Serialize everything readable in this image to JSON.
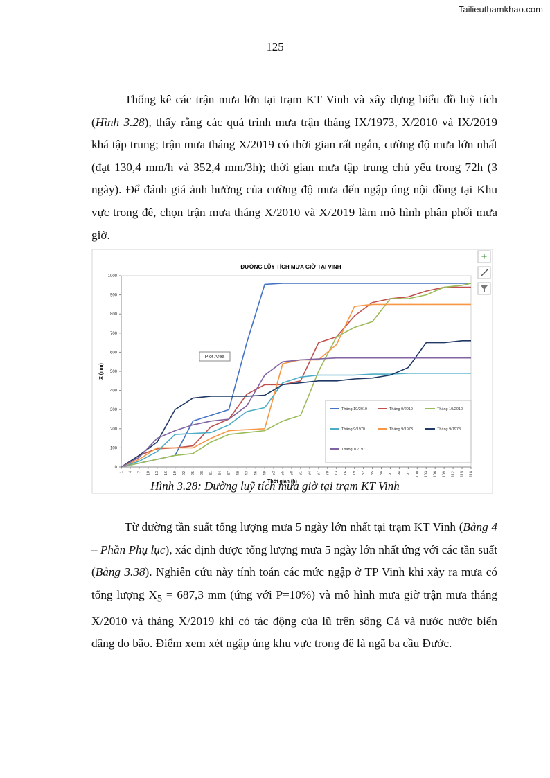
{
  "header": {
    "site": "Tailieuthamkhao.com",
    "page_number": "125"
  },
  "paragraphs": [
    [
      "Thống kê các trận mưa lớn tại trạm KT Vinh và xây dựng biểu đồ luỹ tích (",
      "Hình 3.28",
      "), thấy rằng các quá trình mưa trận tháng IX/1973, X/2010 và IX/2019 khá tập trung; trận mưa tháng X/2019 có thời gian rất ngắn, cường độ mưa lớn nhất (đạt 130,4 mm/h và 352,4 mm/3h); thời gian mưa tập trung chủ yếu trong 72h (3 ngày). Để đánh giá ảnh hưởng của cường độ mưa đến ngập úng nội đồng tại Khu vực trong đê, chọn trận mưa tháng X/2010 và X/2019 làm mô hình phân phối mưa giờ."
    ],
    [
      "Từ đường tần suất tổng lượng mưa 5 ngày lớn nhất tại trạm KT Vinh (",
      "Bảng 4 – Phần Phụ lục",
      "), xác định được tổng lượng mưa 5 ngày lớn nhất ứng với các tần suất (",
      "Bảng 3.38",
      "). Nghiên cứu này tính toán các mức ngập ở TP Vinh khi xảy ra mưa có tổng lượng X",
      "5",
      " = 687,3 mm (ứng với P=10%) và mô hình mưa giờ trận mưa tháng X/2010 và tháng X/2019 khi có tác động của lũ trên sông Cả và nước nước biển dâng do bão. Điểm xem xét ngập úng khu vực trong đê là ngã ba cầu Đước."
    ]
  ],
  "caption": "Hình 3.28: Đường luỹ tích mưa giờ tại trạm KT Vinh",
  "chart_data": {
    "type": "line",
    "title": "ĐƯỜNG LŨY TÍCH MƯA GIỜ TẠI VINH",
    "x_label": "Thời gian (h)",
    "y_label": "X (mm)",
    "tooltip": "Plot Area",
    "x": [
      1,
      7,
      13,
      19,
      25,
      31,
      37,
      43,
      49,
      55,
      61,
      67,
      73,
      79,
      85,
      91,
      97,
      103,
      109,
      115,
      118
    ],
    "xlim": [
      1,
      118
    ],
    "xticks": [
      1,
      4,
      7,
      10,
      13,
      16,
      19,
      22,
      25,
      28,
      31,
      34,
      37,
      40,
      43,
      46,
      49,
      52,
      55,
      58,
      61,
      64,
      67,
      70,
      73,
      76,
      79,
      82,
      85,
      88,
      91,
      94,
      97,
      100,
      103,
      106,
      109,
      112,
      115,
      118
    ],
    "ylim": [
      0,
      1000
    ],
    "yticks": [
      0,
      100,
      200,
      300,
      400,
      500,
      600,
      700,
      800,
      900,
      1000
    ],
    "grid": false,
    "legend": "bottom-right",
    "series": [
      {
        "name": "Tháng 10/2019",
        "color": "#4472c4",
        "values": [
          0,
          20,
          40,
          60,
          240,
          270,
          300,
          650,
          955,
          960,
          960,
          960,
          960,
          960,
          960,
          960,
          960,
          960,
          960,
          960,
          960
        ]
      },
      {
        "name": "Tháng 9/2019",
        "color": "#c0504d",
        "values": [
          0,
          60,
          95,
          100,
          110,
          210,
          250,
          380,
          430,
          430,
          450,
          650,
          680,
          790,
          860,
          880,
          890,
          920,
          940,
          940,
          940
        ]
      },
      {
        "name": "Tháng 10/2010",
        "color": "#9bbb59",
        "values": [
          0,
          20,
          40,
          60,
          70,
          130,
          170,
          180,
          190,
          240,
          270,
          500,
          680,
          730,
          760,
          880,
          880,
          900,
          940,
          950,
          960
        ]
      },
      {
        "name": "Tháng 9/1970",
        "color": "#4bacc6",
        "values": [
          0,
          30,
          80,
          170,
          175,
          180,
          220,
          290,
          310,
          440,
          470,
          480,
          480,
          480,
          485,
          485,
          490,
          490,
          490,
          490,
          490
        ]
      },
      {
        "name": "Tháng 9/1973",
        "color": "#f79646",
        "values": [
          0,
          40,
          100,
          100,
          100,
          150,
          190,
          195,
          200,
          540,
          560,
          560,
          640,
          840,
          850,
          850,
          850,
          850,
          850,
          850,
          850
        ]
      },
      {
        "name": "Tháng 9/1978",
        "color": "#1f3864",
        "values": [
          0,
          60,
          130,
          300,
          360,
          370,
          370,
          370,
          375,
          430,
          440,
          450,
          450,
          460,
          465,
          480,
          520,
          650,
          650,
          660,
          660
        ]
      },
      {
        "name": "Tháng 10/1971",
        "color": "#8064a2",
        "values": [
          0,
          50,
          150,
          190,
          220,
          240,
          250,
          320,
          480,
          550,
          560,
          565,
          570,
          570,
          570,
          570,
          570,
          570,
          570,
          570,
          570
        ]
      }
    ]
  }
}
